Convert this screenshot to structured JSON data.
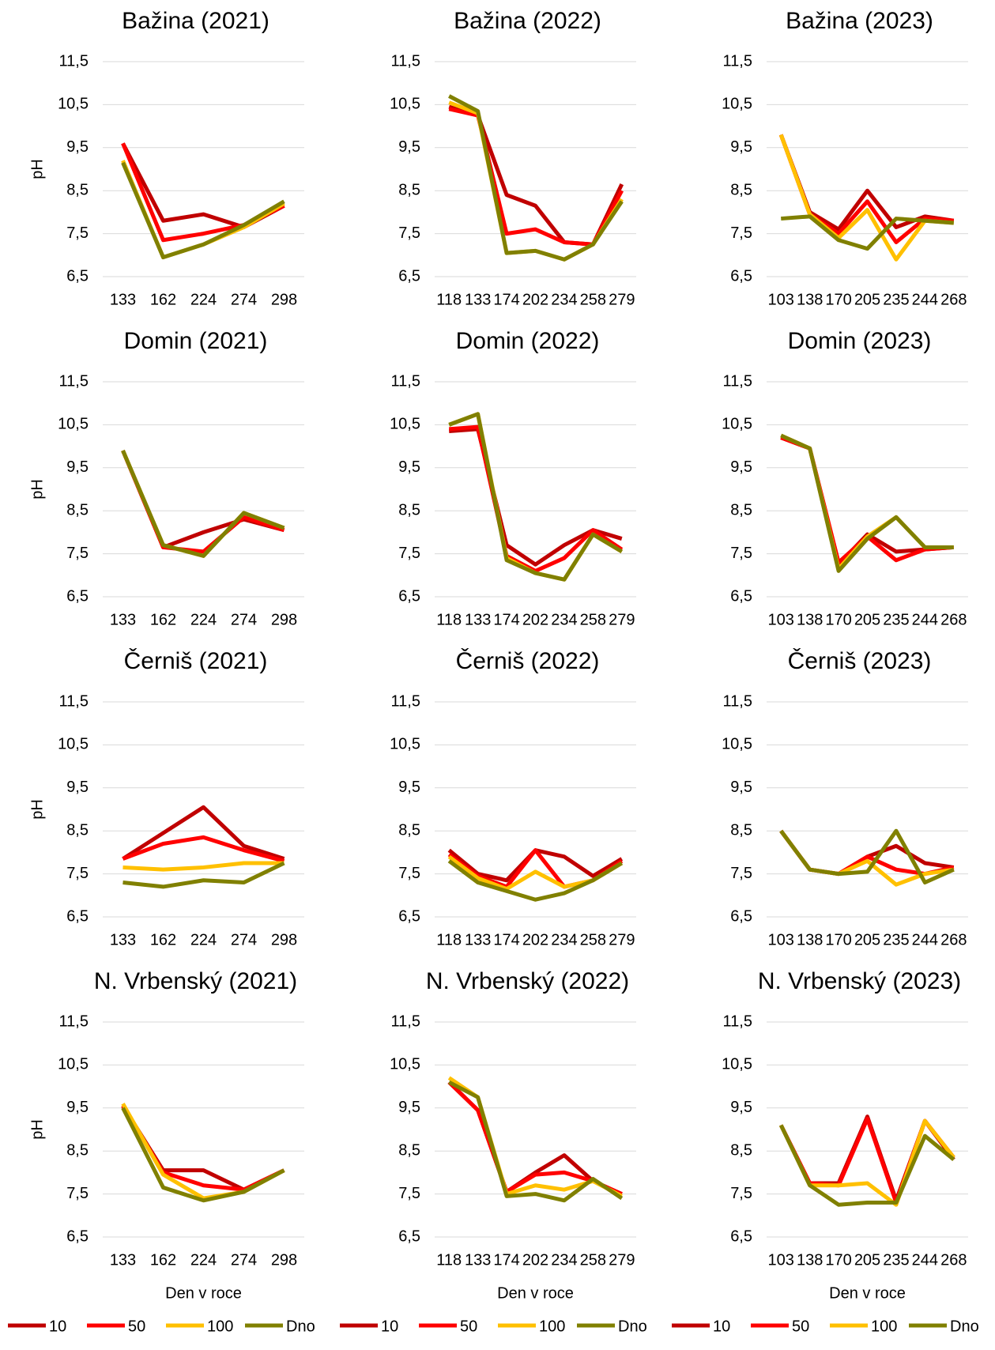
{
  "chart_data": [
    {
      "type": "line",
      "title": "Bažina (2021)",
      "ylabel": "pH",
      "categories": [
        "133",
        "162",
        "224",
        "274",
        "298"
      ],
      "ylim": [
        6.5,
        11.5
      ],
      "yticks": [
        {
          "value": 6.5,
          "label": "6,5"
        },
        {
          "value": 7.5,
          "label": "7,5"
        },
        {
          "value": 8.5,
          "label": "8,5"
        },
        {
          "value": 9.5,
          "label": "9,5"
        },
        {
          "value": 10.5,
          "label": "10,5"
        },
        {
          "value": 11.5,
          "label": "11,5"
        }
      ],
      "grid": true,
      "series": [
        {
          "name": "10",
          "color": "#c00000",
          "values": [
            9.6,
            7.8,
            7.95,
            7.65,
            8.15
          ]
        },
        {
          "name": "50",
          "color": "#ff0000",
          "values": [
            9.6,
            7.35,
            7.5,
            7.7,
            8.15
          ]
        },
        {
          "name": "100",
          "color": "#ffc000",
          "values": [
            9.2,
            6.95,
            7.25,
            7.65,
            8.2
          ]
        },
        {
          "name": "Dno",
          "color": "#808000",
          "values": [
            9.15,
            6.95,
            7.25,
            7.7,
            8.25
          ]
        }
      ]
    },
    {
      "type": "line",
      "title": "Bažina (2022)",
      "categories": [
        "118",
        "133",
        "174",
        "202",
        "234",
        "258",
        "279"
      ],
      "ylim": [
        6.5,
        11.5
      ],
      "yticks": [
        {
          "value": 6.5,
          "label": "6,5"
        },
        {
          "value": 7.5,
          "label": "7,5"
        },
        {
          "value": 8.5,
          "label": "8,5"
        },
        {
          "value": 9.5,
          "label": "9,5"
        },
        {
          "value": 10.5,
          "label": "10,5"
        },
        {
          "value": 11.5,
          "label": "11,5"
        }
      ],
      "grid": true,
      "series": [
        {
          "name": "10",
          "color": "#c00000",
          "values": [
            10.45,
            10.25,
            8.4,
            8.15,
            7.3,
            7.25,
            8.65
          ]
        },
        {
          "name": "50",
          "color": "#ff0000",
          "values": [
            10.4,
            10.25,
            7.5,
            7.6,
            7.3,
            7.25,
            8.5
          ]
        },
        {
          "name": "100",
          "color": "#ffc000",
          "values": [
            10.55,
            10.3,
            7.05,
            7.1,
            6.9,
            7.25,
            8.3
          ]
        },
        {
          "name": "Dno",
          "color": "#808000",
          "values": [
            10.7,
            10.35,
            7.05,
            7.1,
            6.9,
            7.25,
            8.25
          ]
        }
      ]
    },
    {
      "type": "line",
      "title": "Bažina (2023)",
      "categories": [
        "103",
        "138",
        "170",
        "205",
        "235",
        "244",
        "268"
      ],
      "ylim": [
        6.5,
        11.5
      ],
      "yticks": [
        {
          "value": 6.5,
          "label": "6,5"
        },
        {
          "value": 7.5,
          "label": "7,5"
        },
        {
          "value": 8.5,
          "label": "8,5"
        },
        {
          "value": 9.5,
          "label": "9,5"
        },
        {
          "value": 10.5,
          "label": "10,5"
        },
        {
          "value": 11.5,
          "label": "11,5"
        }
      ],
      "grid": true,
      "series": [
        {
          "name": "10",
          "color": "#c00000",
          "values": [
            9.8,
            8.0,
            7.6,
            8.5,
            7.65,
            7.9,
            7.8
          ]
        },
        {
          "name": "50",
          "color": "#ff0000",
          "values": [
            9.8,
            7.95,
            7.5,
            8.25,
            7.3,
            7.85,
            7.8
          ]
        },
        {
          "name": "100",
          "color": "#ffc000",
          "values": [
            9.8,
            7.95,
            7.4,
            8.05,
            6.9,
            7.8,
            7.75
          ]
        },
        {
          "name": "Dno",
          "color": "#808000",
          "values": [
            7.85,
            7.9,
            7.35,
            7.15,
            7.85,
            7.8,
            7.75
          ]
        }
      ]
    },
    {
      "type": "line",
      "title": "Domin (2021)",
      "ylabel": "pH",
      "categories": [
        "133",
        "162",
        "224",
        "274",
        "298"
      ],
      "ylim": [
        6.5,
        11.5
      ],
      "yticks": [
        {
          "value": 6.5,
          "label": "6,5"
        },
        {
          "value": 7.5,
          "label": "7,5"
        },
        {
          "value": 8.5,
          "label": "8,5"
        },
        {
          "value": 9.5,
          "label": "9,5"
        },
        {
          "value": 10.5,
          "label": "10,5"
        },
        {
          "value": 11.5,
          "label": "11,5"
        }
      ],
      "grid": true,
      "series": [
        {
          "name": "10",
          "color": "#c00000",
          "values": [
            9.9,
            7.65,
            8.0,
            8.3,
            8.05
          ]
        },
        {
          "name": "50",
          "color": "#ff0000",
          "values": [
            9.9,
            7.65,
            7.55,
            8.35,
            8.05
          ]
        },
        {
          "name": "100",
          "color": "#ffc000",
          "values": [
            9.9,
            7.7,
            7.45,
            8.45,
            8.1
          ]
        },
        {
          "name": "Dno",
          "color": "#808000",
          "values": [
            9.9,
            7.7,
            7.45,
            8.45,
            8.1
          ]
        }
      ]
    },
    {
      "type": "line",
      "title": "Domin (2022)",
      "categories": [
        "118",
        "133",
        "174",
        "202",
        "234",
        "258",
        "279"
      ],
      "ylim": [
        6.5,
        11.5
      ],
      "yticks": [
        {
          "value": 6.5,
          "label": "6,5"
        },
        {
          "value": 7.5,
          "label": "7,5"
        },
        {
          "value": 8.5,
          "label": "8,5"
        },
        {
          "value": 9.5,
          "label": "9,5"
        },
        {
          "value": 10.5,
          "label": "10,5"
        },
        {
          "value": 11.5,
          "label": "11,5"
        }
      ],
      "grid": true,
      "series": [
        {
          "name": "10",
          "color": "#c00000",
          "values": [
            10.35,
            10.4,
            7.7,
            7.25,
            7.7,
            8.05,
            7.85
          ]
        },
        {
          "name": "50",
          "color": "#ff0000",
          "values": [
            10.4,
            10.45,
            7.45,
            7.1,
            7.4,
            8.05,
            7.6
          ]
        },
        {
          "name": "100",
          "color": "#ffc000",
          "values": [
            10.5,
            10.75,
            7.4,
            7.05,
            6.9,
            7.95,
            7.55
          ]
        },
        {
          "name": "Dno",
          "color": "#808000",
          "values": [
            10.5,
            10.75,
            7.35,
            7.05,
            6.9,
            7.95,
            7.55
          ]
        }
      ]
    },
    {
      "type": "line",
      "title": "Domin (2023)",
      "categories": [
        "103",
        "138",
        "170",
        "205",
        "235",
        "244",
        "268"
      ],
      "ylim": [
        6.5,
        11.5
      ],
      "yticks": [
        {
          "value": 6.5,
          "label": "6,5"
        },
        {
          "value": 7.5,
          "label": "7,5"
        },
        {
          "value": 8.5,
          "label": "8,5"
        },
        {
          "value": 9.5,
          "label": "9,5"
        },
        {
          "value": 10.5,
          "label": "10,5"
        },
        {
          "value": 11.5,
          "label": "11,5"
        }
      ],
      "grid": true,
      "series": [
        {
          "name": "10",
          "color": "#c00000",
          "values": [
            10.2,
            9.95,
            7.25,
            7.95,
            7.55,
            7.6,
            7.65
          ]
        },
        {
          "name": "50",
          "color": "#ff0000",
          "values": [
            10.2,
            9.95,
            7.3,
            7.9,
            7.35,
            7.6,
            7.65
          ]
        },
        {
          "name": "100",
          "color": "#ffc000",
          "values": [
            10.25,
            9.95,
            7.15,
            7.9,
            8.35,
            7.65,
            7.65
          ]
        },
        {
          "name": "Dno",
          "color": "#808000",
          "values": [
            10.25,
            9.95,
            7.1,
            7.85,
            8.35,
            7.65,
            7.65
          ]
        }
      ]
    },
    {
      "type": "line",
      "title": "Černiš (2021)",
      "ylabel": "pH",
      "categories": [
        "133",
        "162",
        "224",
        "274",
        "298"
      ],
      "ylim": [
        6.5,
        11.5
      ],
      "yticks": [
        {
          "value": 6.5,
          "label": "6,5"
        },
        {
          "value": 7.5,
          "label": "7,5"
        },
        {
          "value": 8.5,
          "label": "8,5"
        },
        {
          "value": 9.5,
          "label": "9,5"
        },
        {
          "value": 10.5,
          "label": "10,5"
        },
        {
          "value": 11.5,
          "label": "11,5"
        }
      ],
      "grid": true,
      "series": [
        {
          "name": "10",
          "color": "#c00000",
          "values": [
            7.85,
            8.45,
            9.05,
            8.15,
            7.85
          ]
        },
        {
          "name": "50",
          "color": "#ff0000",
          "values": [
            7.85,
            8.2,
            8.35,
            8.05,
            7.8
          ]
        },
        {
          "name": "100",
          "color": "#ffc000",
          "values": [
            7.65,
            7.6,
            7.65,
            7.75,
            7.75
          ]
        },
        {
          "name": "Dno",
          "color": "#808000",
          "values": [
            7.3,
            7.2,
            7.35,
            7.3,
            7.75
          ]
        }
      ]
    },
    {
      "type": "line",
      "title": "Černiš (2022)",
      "categories": [
        "118",
        "133",
        "174",
        "202",
        "234",
        "258",
        "279"
      ],
      "ylim": [
        6.5,
        11.5
      ],
      "yticks": [
        {
          "value": 6.5,
          "label": "6,5"
        },
        {
          "value": 7.5,
          "label": "7,5"
        },
        {
          "value": 8.5,
          "label": "8,5"
        },
        {
          "value": 9.5,
          "label": "9,5"
        },
        {
          "value": 10.5,
          "label": "10,5"
        },
        {
          "value": 11.5,
          "label": "11,5"
        }
      ],
      "grid": true,
      "series": [
        {
          "name": "10",
          "color": "#c00000",
          "values": [
            8.05,
            7.5,
            7.35,
            8.05,
            7.9,
            7.45,
            7.85
          ]
        },
        {
          "name": "50",
          "color": "#ff0000",
          "values": [
            7.95,
            7.45,
            7.2,
            8.05,
            7.2,
            7.35,
            7.8
          ]
        },
        {
          "name": "100",
          "color": "#ffc000",
          "values": [
            7.9,
            7.4,
            7.15,
            7.55,
            7.2,
            7.35,
            7.75
          ]
        },
        {
          "name": "Dno",
          "color": "#808000",
          "values": [
            7.8,
            7.3,
            7.1,
            6.9,
            7.05,
            7.35,
            7.75
          ]
        }
      ]
    },
    {
      "type": "line",
      "title": "Černiš (2023)",
      "categories": [
        "103",
        "138",
        "170",
        "205",
        "235",
        "244",
        "268"
      ],
      "ylim": [
        6.5,
        11.5
      ],
      "yticks": [
        {
          "value": 6.5,
          "label": "6,5"
        },
        {
          "value": 7.5,
          "label": "7,5"
        },
        {
          "value": 8.5,
          "label": "8,5"
        },
        {
          "value": 9.5,
          "label": "9,5"
        },
        {
          "value": 10.5,
          "label": "10,5"
        },
        {
          "value": 11.5,
          "label": "11,5"
        }
      ],
      "grid": true,
      "series": [
        {
          "name": "10",
          "color": "#c00000",
          "values": [
            8.5,
            7.6,
            7.5,
            7.9,
            8.15,
            7.75,
            7.65
          ]
        },
        {
          "name": "50",
          "color": "#ff0000",
          "values": [
            8.5,
            7.6,
            7.5,
            7.9,
            7.6,
            7.5,
            7.65
          ]
        },
        {
          "name": "100",
          "color": "#ffc000",
          "values": [
            8.5,
            7.6,
            7.5,
            7.8,
            7.25,
            7.5,
            7.6
          ]
        },
        {
          "name": "Dno",
          "color": "#808000",
          "values": [
            8.5,
            7.6,
            7.5,
            7.55,
            8.5,
            7.3,
            7.6
          ]
        }
      ]
    },
    {
      "type": "line",
      "title": "N. Vrbenský (2021)",
      "ylabel": "pH",
      "xlabel": "Den v roce",
      "legend": "bottom",
      "categories": [
        "133",
        "162",
        "224",
        "274",
        "298"
      ],
      "ylim": [
        6.5,
        11.5
      ],
      "yticks": [
        {
          "value": 6.5,
          "label": "6,5"
        },
        {
          "value": 7.5,
          "label": "7,5"
        },
        {
          "value": 8.5,
          "label": "8,5"
        },
        {
          "value": 9.5,
          "label": "9,5"
        },
        {
          "value": 10.5,
          "label": "10,5"
        },
        {
          "value": 11.5,
          "label": "11,5"
        }
      ],
      "grid": true,
      "series": [
        {
          "name": "10",
          "color": "#c00000",
          "values": [
            9.55,
            8.05,
            8.05,
            7.6,
            8.05
          ]
        },
        {
          "name": "50",
          "color": "#ff0000",
          "values": [
            9.55,
            8.0,
            7.7,
            7.6,
            8.05
          ]
        },
        {
          "name": "100",
          "color": "#ffc000",
          "values": [
            9.6,
            7.95,
            7.4,
            7.55,
            8.05
          ]
        },
        {
          "name": "Dno",
          "color": "#808000",
          "values": [
            9.5,
            7.65,
            7.35,
            7.55,
            8.05
          ]
        }
      ]
    },
    {
      "type": "line",
      "title": "N. Vrbenský (2022)",
      "xlabel": "Den v roce",
      "legend": "bottom",
      "categories": [
        "118",
        "133",
        "174",
        "202",
        "234",
        "258",
        "279"
      ],
      "ylim": [
        6.5,
        11.5
      ],
      "yticks": [
        {
          "value": 6.5,
          "label": "6,5"
        },
        {
          "value": 7.5,
          "label": "7,5"
        },
        {
          "value": 8.5,
          "label": "8,5"
        },
        {
          "value": 9.5,
          "label": "9,5"
        },
        {
          "value": 10.5,
          "label": "10,5"
        },
        {
          "value": 11.5,
          "label": "11,5"
        }
      ],
      "grid": true,
      "series": [
        {
          "name": "10",
          "color": "#c00000",
          "values": [
            10.1,
            9.45,
            7.55,
            8.0,
            8.4,
            7.8,
            7.5
          ]
        },
        {
          "name": "50",
          "color": "#ff0000",
          "values": [
            10.1,
            9.45,
            7.55,
            7.95,
            8.0,
            7.8,
            7.5
          ]
        },
        {
          "name": "100",
          "color": "#ffc000",
          "values": [
            10.2,
            9.75,
            7.5,
            7.7,
            7.6,
            7.8,
            7.45
          ]
        },
        {
          "name": "Dno",
          "color": "#808000",
          "values": [
            10.1,
            9.75,
            7.45,
            7.5,
            7.35,
            7.85,
            7.4
          ]
        }
      ]
    },
    {
      "type": "line",
      "title": "N. Vrbenský (2023)",
      "xlabel": "Den v roce",
      "legend": "bottom",
      "categories": [
        "103",
        "138",
        "170",
        "205",
        "235",
        "244",
        "268"
      ],
      "ylim": [
        6.5,
        11.5
      ],
      "yticks": [
        {
          "value": 6.5,
          "label": "6,5"
        },
        {
          "value": 7.5,
          "label": "7,5"
        },
        {
          "value": 8.5,
          "label": "8,5"
        },
        {
          "value": 9.5,
          "label": "9,5"
        },
        {
          "value": 10.5,
          "label": "10,5"
        },
        {
          "value": 11.5,
          "label": "11,5"
        }
      ],
      "grid": true,
      "series": [
        {
          "name": "10",
          "color": "#c00000",
          "values": [
            9.1,
            7.75,
            7.75,
            9.3,
            7.35,
            9.2,
            8.3
          ]
        },
        {
          "name": "50",
          "color": "#ff0000",
          "values": [
            9.1,
            7.75,
            7.7,
            9.25,
            7.3,
            9.2,
            8.35
          ]
        },
        {
          "name": "100",
          "color": "#ffc000",
          "values": [
            9.1,
            7.7,
            7.7,
            7.75,
            7.25,
            9.2,
            8.35
          ]
        },
        {
          "name": "Dno",
          "color": "#808000",
          "values": [
            9.1,
            7.7,
            7.25,
            7.3,
            7.3,
            8.85,
            8.3
          ]
        }
      ]
    }
  ]
}
